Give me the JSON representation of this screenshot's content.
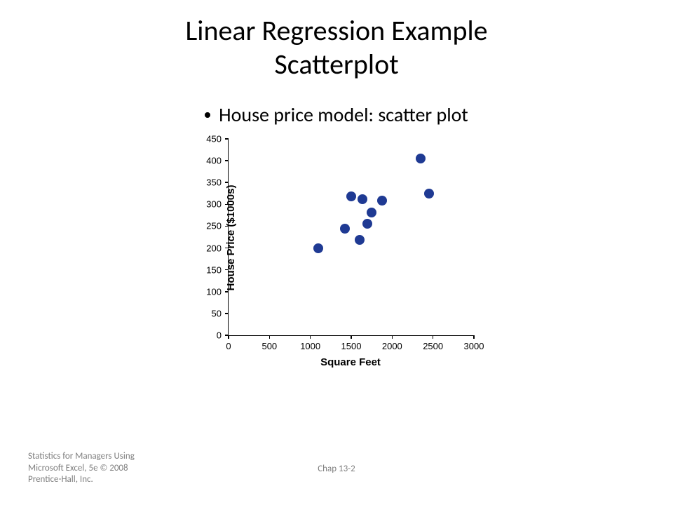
{
  "title_line1": "Linear Regression Example",
  "title_line2": "Scatterplot",
  "bullet": "House price model:  scatter plot",
  "chart": {
    "type": "scatter",
    "x_label": "Square Feet",
    "y_label": "House Price ($1000s)",
    "xlim": [
      0,
      3000
    ],
    "ylim": [
      0,
      450
    ],
    "x_ticks": [
      0,
      500,
      1000,
      1500,
      2000,
      2500,
      3000
    ],
    "y_ticks": [
      0,
      50,
      100,
      150,
      200,
      250,
      300,
      350,
      400,
      450
    ],
    "marker_color": "#1f3a93",
    "marker_size": 14,
    "background_color": "#ffffff",
    "axis_color": "#000000",
    "tick_fontsize": 13,
    "label_fontsize": 15,
    "label_fontweight": "bold",
    "points": [
      {
        "x": 1100,
        "y": 199
      },
      {
        "x": 1425,
        "y": 245
      },
      {
        "x": 1500,
        "y": 319
      },
      {
        "x": 1600,
        "y": 219
      },
      {
        "x": 1634,
        "y": 312
      },
      {
        "x": 1700,
        "y": 255
      },
      {
        "x": 1750,
        "y": 282
      },
      {
        "x": 1875,
        "y": 308
      },
      {
        "x": 2350,
        "y": 405
      },
      {
        "x": 2450,
        "y": 324
      }
    ]
  },
  "footer_left": "Statistics for Managers Using\nMicrosoft Excel, 5e © 2008\nPrentice-Hall, Inc.",
  "footer_center": "Chap 13-2"
}
